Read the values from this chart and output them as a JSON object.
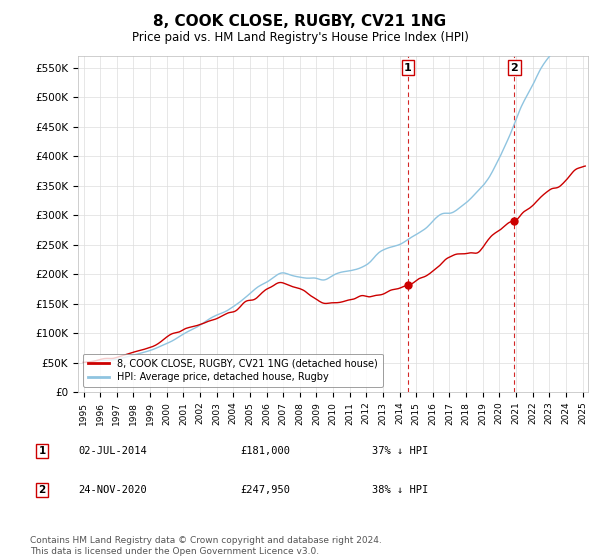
{
  "title": "8, COOK CLOSE, RUGBY, CV21 1NG",
  "subtitle": "Price paid vs. HM Land Registry's House Price Index (HPI)",
  "title_fontsize": 11,
  "subtitle_fontsize": 8.5,
  "legend_label_red": "8, COOK CLOSE, RUGBY, CV21 1NG (detached house)",
  "legend_label_blue": "HPI: Average price, detached house, Rugby",
  "marker1_price": 181000,
  "marker2_price": 247950,
  "ylabel_ticks": [
    "£0",
    "£50K",
    "£100K",
    "£150K",
    "£200K",
    "£250K",
    "£300K",
    "£350K",
    "£400K",
    "£450K",
    "£500K",
    "£550K"
  ],
  "ylabel_values": [
    0,
    50000,
    100000,
    150000,
    200000,
    250000,
    300000,
    350000,
    400000,
    450000,
    500000,
    550000
  ],
  "hpi_color": "#8fc4e0",
  "price_color": "#cc0000",
  "vline_color": "#cc0000",
  "grid_color": "#dddddd",
  "bg_color": "#ffffff",
  "footnote": "Contains HM Land Registry data © Crown copyright and database right 2024.\nThis data is licensed under the Open Government Licence v3.0.",
  "footnote_fontsize": 6.5
}
